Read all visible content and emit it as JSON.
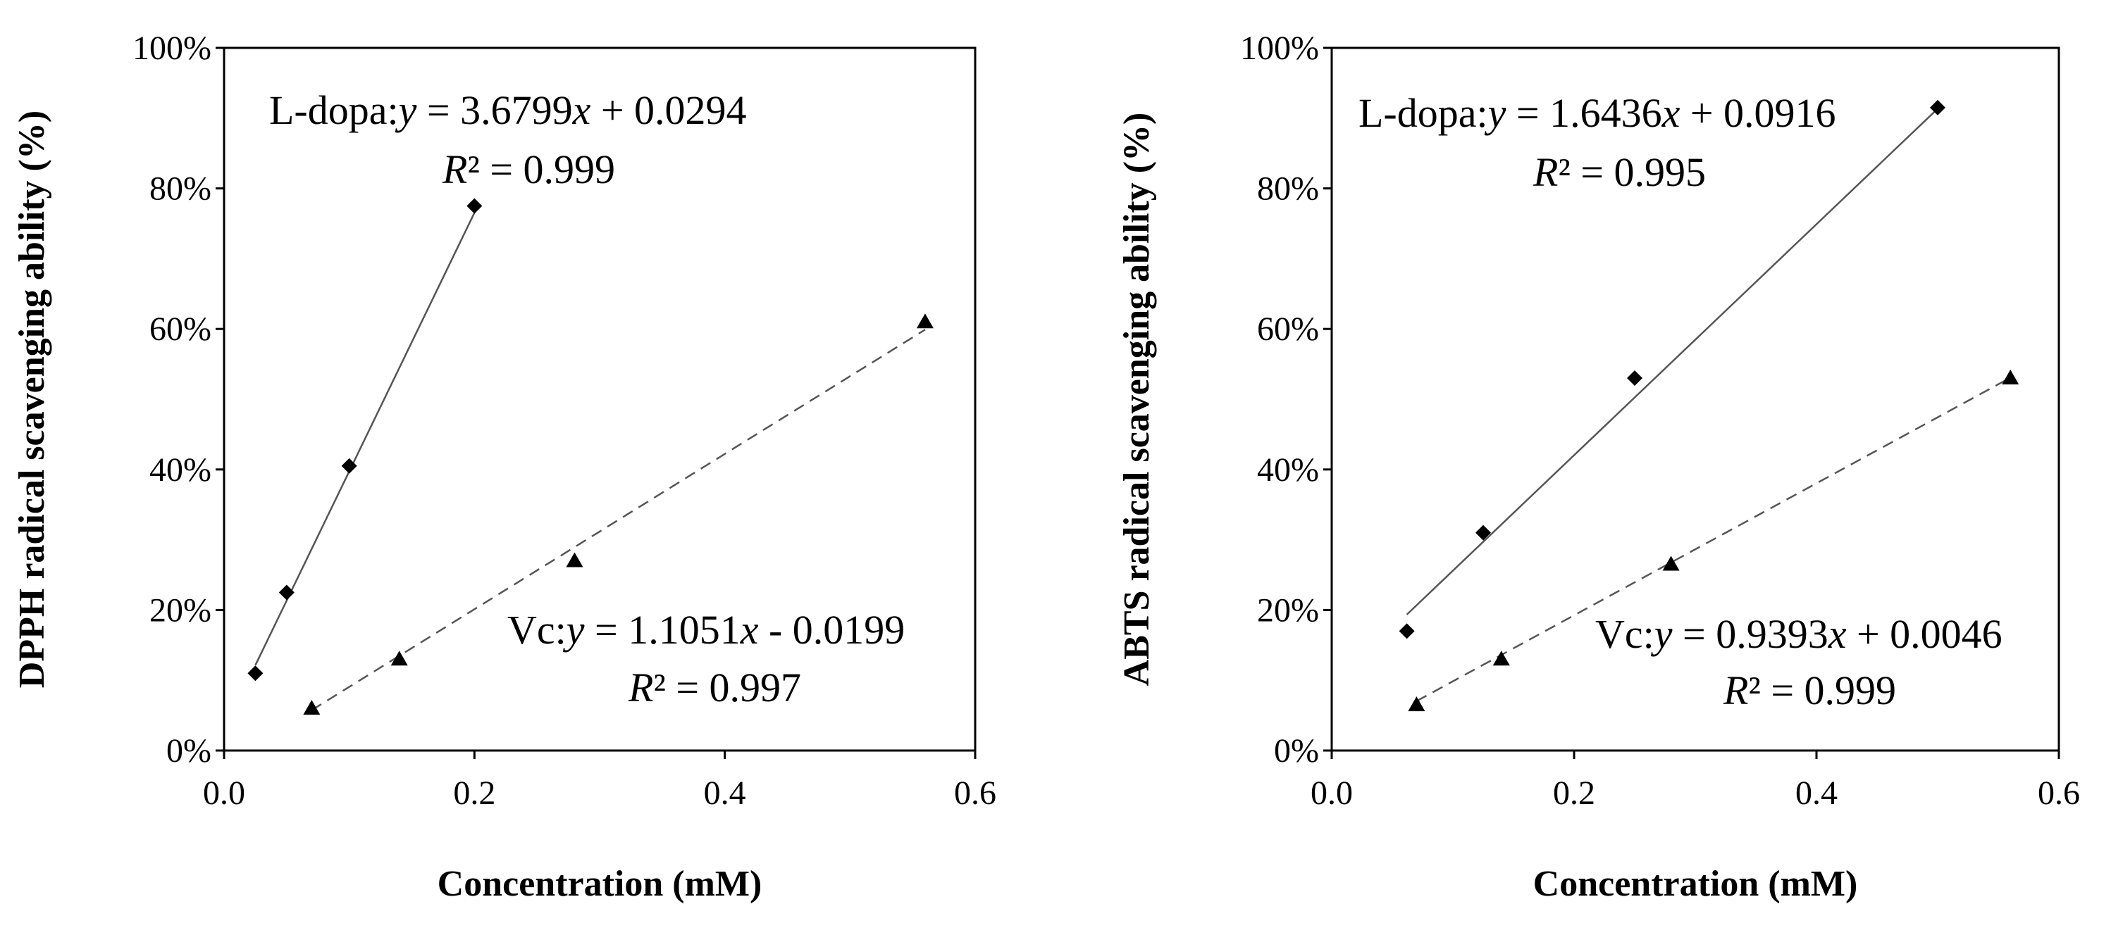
{
  "colors": {
    "background": "#ffffff",
    "ink": "#000000",
    "trendline": "#555555"
  },
  "chart_data": [
    {
      "type": "scatter",
      "title": "",
      "xlabel": "Concentration (mM)",
      "ylabel": "DPPH radical scavenging ability (%)",
      "xlim": [
        0.0,
        0.6
      ],
      "ylim": [
        0,
        100
      ],
      "x_ticks": [
        "0.0",
        "0.2",
        "0.4",
        "0.6"
      ],
      "y_ticks": [
        "0%",
        "20%",
        "40%",
        "60%",
        "80%",
        "100%"
      ],
      "grid": false,
      "series": [
        {
          "name": "L-dopa",
          "marker": "diamond",
          "line_style": "solid",
          "x": [
            0.025,
            0.05,
            0.1,
            0.2
          ],
          "y": [
            11,
            22.5,
            40.5,
            77.5
          ],
          "fit": {
            "slope": 3.6799,
            "intercept": 0.0294,
            "x_range": [
              0.025,
              0.2
            ]
          },
          "equation": {
            "label": "L-dopa:",
            "y": "y",
            "eq": " = 3.6799",
            "x": "x",
            "rest": " + 0.0294",
            "r": "R",
            "r2": "² = 0.999"
          }
        },
        {
          "name": "Vc",
          "marker": "triangle",
          "line_style": "dashed",
          "x": [
            0.07,
            0.14,
            0.28,
            0.56
          ],
          "y": [
            6,
            13,
            27,
            61
          ],
          "fit": {
            "slope": 1.1051,
            "intercept": -0.0199,
            "x_range": [
              0.07,
              0.56
            ]
          },
          "equation": {
            "label": "Vc:",
            "y": "y",
            "eq": " = 1.1051",
            "x": "x",
            "rest": " - 0.0199",
            "r": "R",
            "r2": "² = 0.997"
          }
        }
      ]
    },
    {
      "type": "scatter",
      "title": "",
      "xlabel": "Concentration (mM)",
      "ylabel": "ABTS radical scavenging ability (%)",
      "xlim": [
        0.0,
        0.6
      ],
      "ylim": [
        0,
        100
      ],
      "x_ticks": [
        "0.0",
        "0.2",
        "0.4",
        "0.6"
      ],
      "y_ticks": [
        "0%",
        "20%",
        "40%",
        "60%",
        "80%",
        "100%"
      ],
      "grid": false,
      "series": [
        {
          "name": "L-dopa",
          "marker": "diamond",
          "line_style": "solid",
          "x": [
            0.062,
            0.125,
            0.25,
            0.5
          ],
          "y": [
            17,
            31,
            53,
            91.5
          ],
          "fit": {
            "slope": 1.6436,
            "intercept": 0.0916,
            "x_range": [
              0.062,
              0.5
            ]
          },
          "equation": {
            "label": "L-dopa:",
            "y": "y",
            "eq": " = 1.6436",
            "x": "x",
            "rest": " + 0.0916",
            "r": "R",
            "r2": "² = 0.995"
          }
        },
        {
          "name": "Vc",
          "marker": "triangle",
          "line_style": "dashed",
          "x": [
            0.07,
            0.14,
            0.28,
            0.56
          ],
          "y": [
            6.5,
            13,
            26.5,
            53
          ],
          "fit": {
            "slope": 0.9393,
            "intercept": 0.0046,
            "x_range": [
              0.07,
              0.56
            ]
          },
          "equation": {
            "label": "Vc:",
            "y": "y",
            "eq": " = 0.9393",
            "x": "x",
            "rest": " + 0.0046",
            "r": "R",
            "r2": "² = 0.999"
          }
        }
      ]
    }
  ]
}
